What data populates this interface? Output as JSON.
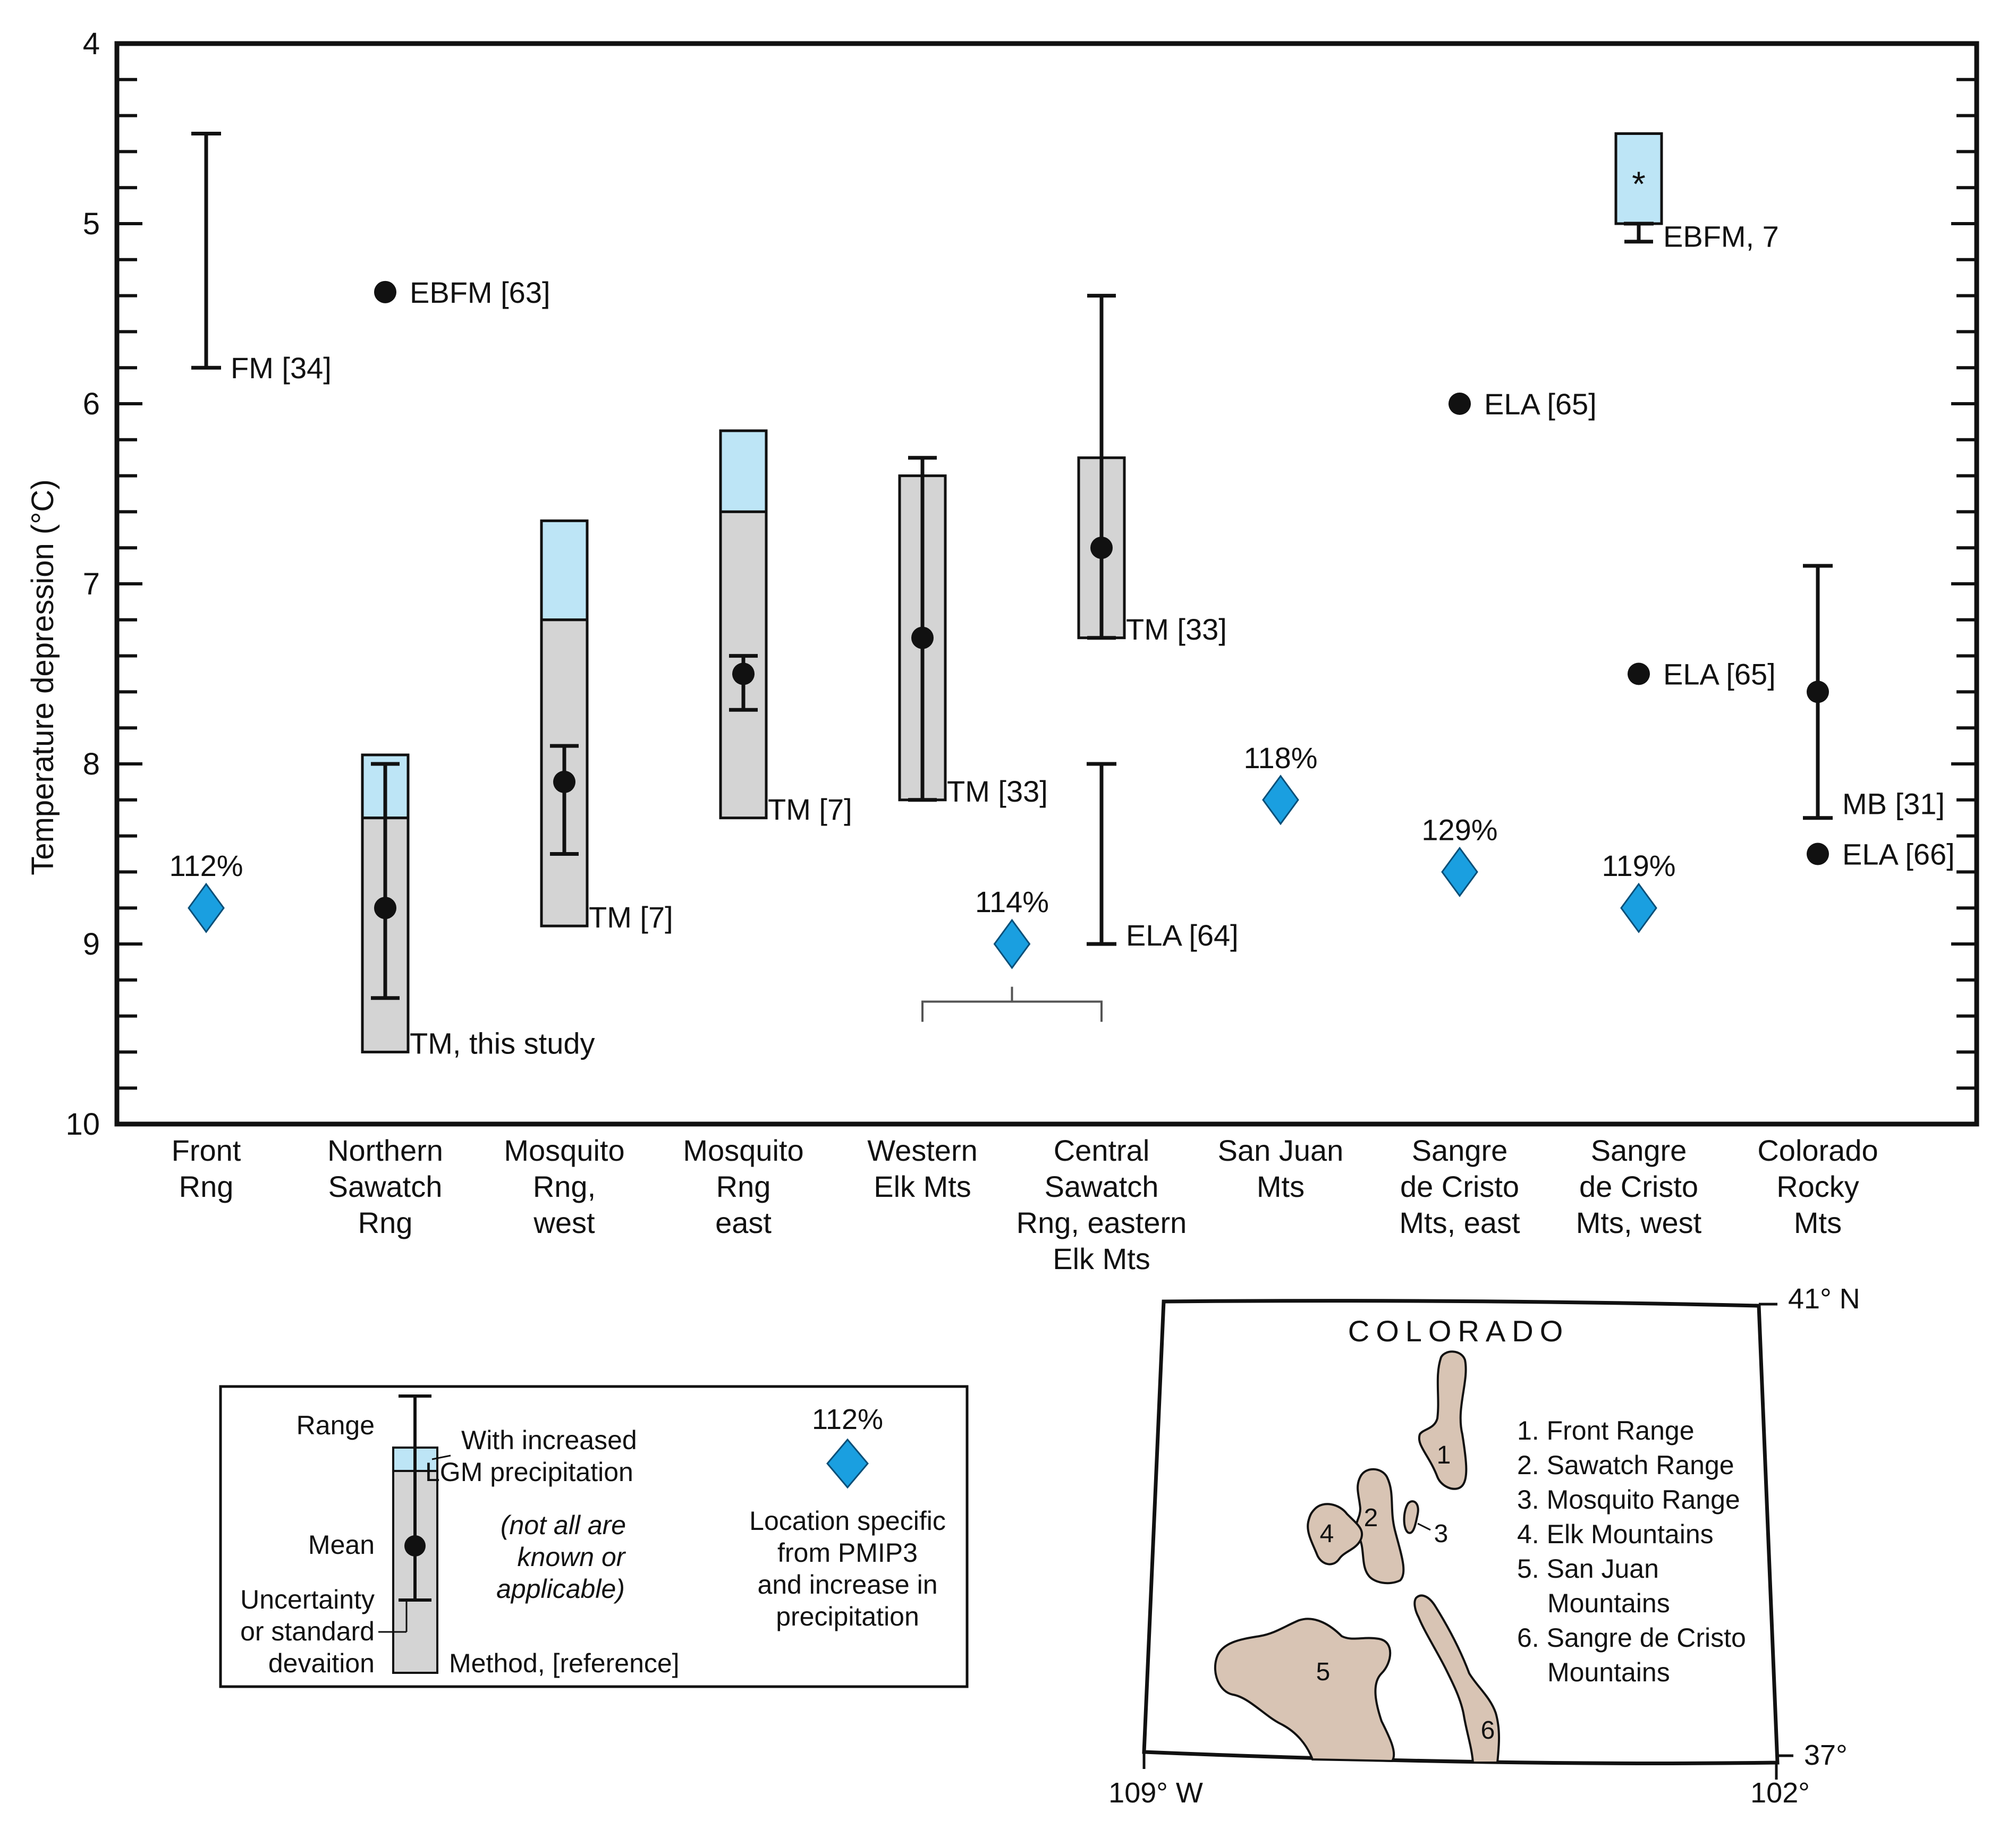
{
  "colors": {
    "box_gray": "#d4d4d4",
    "box_blue": "#bde5f6",
    "diamond": "#1a9fe0",
    "map_land": "#d8c4b4",
    "ink": "#111111"
  },
  "chart_data": {
    "type": "range-plot",
    "ylabel": "Temperature depression (°C)",
    "ylim": [
      4,
      10
    ],
    "y_inverted": true,
    "y_ticks": [
      "4",
      "5",
      "6",
      "7",
      "8",
      "9",
      "10"
    ],
    "categories": [
      [
        "Front",
        "Rng"
      ],
      [
        "Northern",
        "Sawatch",
        "Rng"
      ],
      [
        "Mosquito",
        "Rng,",
        "west"
      ],
      [
        "Mosquito",
        "Rng",
        "east"
      ],
      [
        "Western",
        "Elk Mts"
      ],
      [
        "Central",
        "Sawatch",
        "Rng, eastern",
        "Elk Mts"
      ],
      [
        "San Juan",
        "Mts"
      ],
      [
        "Sangre",
        "de Cristo",
        "Mts, east"
      ],
      [
        "Sangre",
        "de Cristo",
        "Mts, west"
      ],
      [
        "Colorado",
        "Rocky",
        "Mts"
      ]
    ],
    "boxes": [
      {
        "cat": 1,
        "low": 8.3,
        "high": 9.6,
        "wet_high": 7.95
      },
      {
        "cat": 2,
        "low": 7.2,
        "high": 8.9,
        "wet_high": 6.65
      },
      {
        "cat": 3,
        "low": 6.6,
        "high": 8.3,
        "wet_high": 6.15
      },
      {
        "cat": 4,
        "low": 6.4,
        "high": 8.2
      },
      {
        "cat": 5,
        "low": 6.3,
        "high": 7.3
      },
      {
        "cat": 8,
        "wet_only": true,
        "low": 4.5,
        "high": 5.0
      }
    ],
    "ranges": [
      {
        "cat": 0,
        "low": 4.5,
        "high": 5.8,
        "cap_top": false,
        "cap_bottom": false
      },
      {
        "cat": 1,
        "low": 8.0,
        "high": 9.3,
        "cap_top": true,
        "cap_bottom": true
      },
      {
        "cat": 2,
        "low": 7.9,
        "high": 8.5,
        "cap_top": true,
        "cap_bottom": true
      },
      {
        "cat": 3,
        "low": 7.4,
        "high": 7.7,
        "cap_top": true,
        "cap_bottom": true
      },
      {
        "cat": 4,
        "low": 6.3,
        "high": 8.2,
        "cap_top": true,
        "cap_bottom": true
      },
      {
        "cat": 5,
        "low": 5.4,
        "high": 7.3,
        "cap_top": true,
        "cap_bottom": true
      },
      {
        "cat": 5,
        "low": 8.0,
        "high": 9.0,
        "cap_top": false,
        "cap_bottom": false
      },
      {
        "cat": 8,
        "low": 5.0,
        "high": 5.1,
        "cap_top": false,
        "cap_bottom": true
      },
      {
        "cat": 9,
        "low": 6.9,
        "high": 8.3,
        "cap_top": false,
        "cap_bottom": false
      }
    ],
    "means": [
      {
        "cat": 1,
        "value": 8.8
      },
      {
        "cat": 2,
        "value": 8.1
      },
      {
        "cat": 3,
        "value": 7.5
      },
      {
        "cat": 4,
        "value": 7.3
      },
      {
        "cat": 5,
        "value": 6.8
      },
      {
        "cat": 9,
        "value": 7.6
      }
    ],
    "points": [
      {
        "cat": 1,
        "value": 5.38
      },
      {
        "cat": 7,
        "value": 6.0
      },
      {
        "cat": 8,
        "value": 7.5
      },
      {
        "cat": 9,
        "value": 8.5
      }
    ],
    "asterisk": {
      "cat": 8,
      "value": 4.77,
      "text": "*"
    },
    "method_labels": [
      {
        "cat": 0,
        "value": 5.8,
        "text": "FM [34]"
      },
      {
        "cat": 1,
        "value": 5.38,
        "text": "EBFM [63]"
      },
      {
        "cat": 1,
        "value": 9.55,
        "text": "TM, this study"
      },
      {
        "cat": 2,
        "value": 8.85,
        "text": "TM [7]"
      },
      {
        "cat": 3,
        "value": 8.25,
        "text": "TM [7]"
      },
      {
        "cat": 4,
        "value": 8.15,
        "text": "TM [33]"
      },
      {
        "cat": 5,
        "value": 7.25,
        "text": "TM [33]"
      },
      {
        "cat": 5,
        "value": 8.95,
        "text": "ELA [64]"
      },
      {
        "cat": 7,
        "value": 6.0,
        "text": "ELA [65]"
      },
      {
        "cat": 8,
        "value": 5.07,
        "text": "EBFM, 7"
      },
      {
        "cat": 8,
        "value": 7.5,
        "text": "ELA [65]"
      },
      {
        "cat": 9,
        "value": 8.22,
        "text": "MB [31]"
      },
      {
        "cat": 9,
        "value": 8.5,
        "text": "ELA [66]"
      }
    ],
    "diamonds": [
      {
        "pos": 0,
        "value": 8.8,
        "label": "112%"
      },
      {
        "pos": 4.5,
        "value": 9.0,
        "label": "114%"
      },
      {
        "pos": 6,
        "value": 8.2,
        "label": "118%"
      },
      {
        "pos": 7,
        "value": 8.6,
        "label": "129%"
      },
      {
        "pos": 8,
        "value": 8.8,
        "label": "119%"
      }
    ],
    "bracket": {
      "from_cat": 4,
      "to_cat": 5,
      "value": 9.32
    }
  },
  "legend": {
    "range_label": "Range",
    "wet_label_line1": "With increased",
    "wet_label_line2": "LGM precipitation",
    "mean_label": "Mean",
    "uncertainty_line1": "Uncertainty",
    "uncertainty_line2": "or standard",
    "uncertainty_line3": "devaition",
    "method_label": "Method, [reference]",
    "note_line1": "(not all are",
    "note_line2": "known or",
    "note_line3": "applicable)",
    "diamond_pct": "112%",
    "diamond_line1": "Location specific",
    "diamond_line2": "from PMIP3",
    "diamond_line3": "and increase in",
    "diamond_line4": "precipitation"
  },
  "map": {
    "title": "COLORADO",
    "lat_north": "41° N",
    "lat_south": "37°",
    "lon_west": "109° W",
    "lon_east": "102°",
    "region_numbers": [
      "1",
      "2",
      "3",
      "4",
      "5",
      "6"
    ],
    "key": [
      [
        "1. Front Range"
      ],
      [
        "2. Sawatch Range"
      ],
      [
        "3. Mosquito Range"
      ],
      [
        "4. Elk Mountains"
      ],
      [
        "5. San Juan",
        "Mountains"
      ],
      [
        "6. Sangre de Cristo",
        "Mountains"
      ]
    ]
  }
}
